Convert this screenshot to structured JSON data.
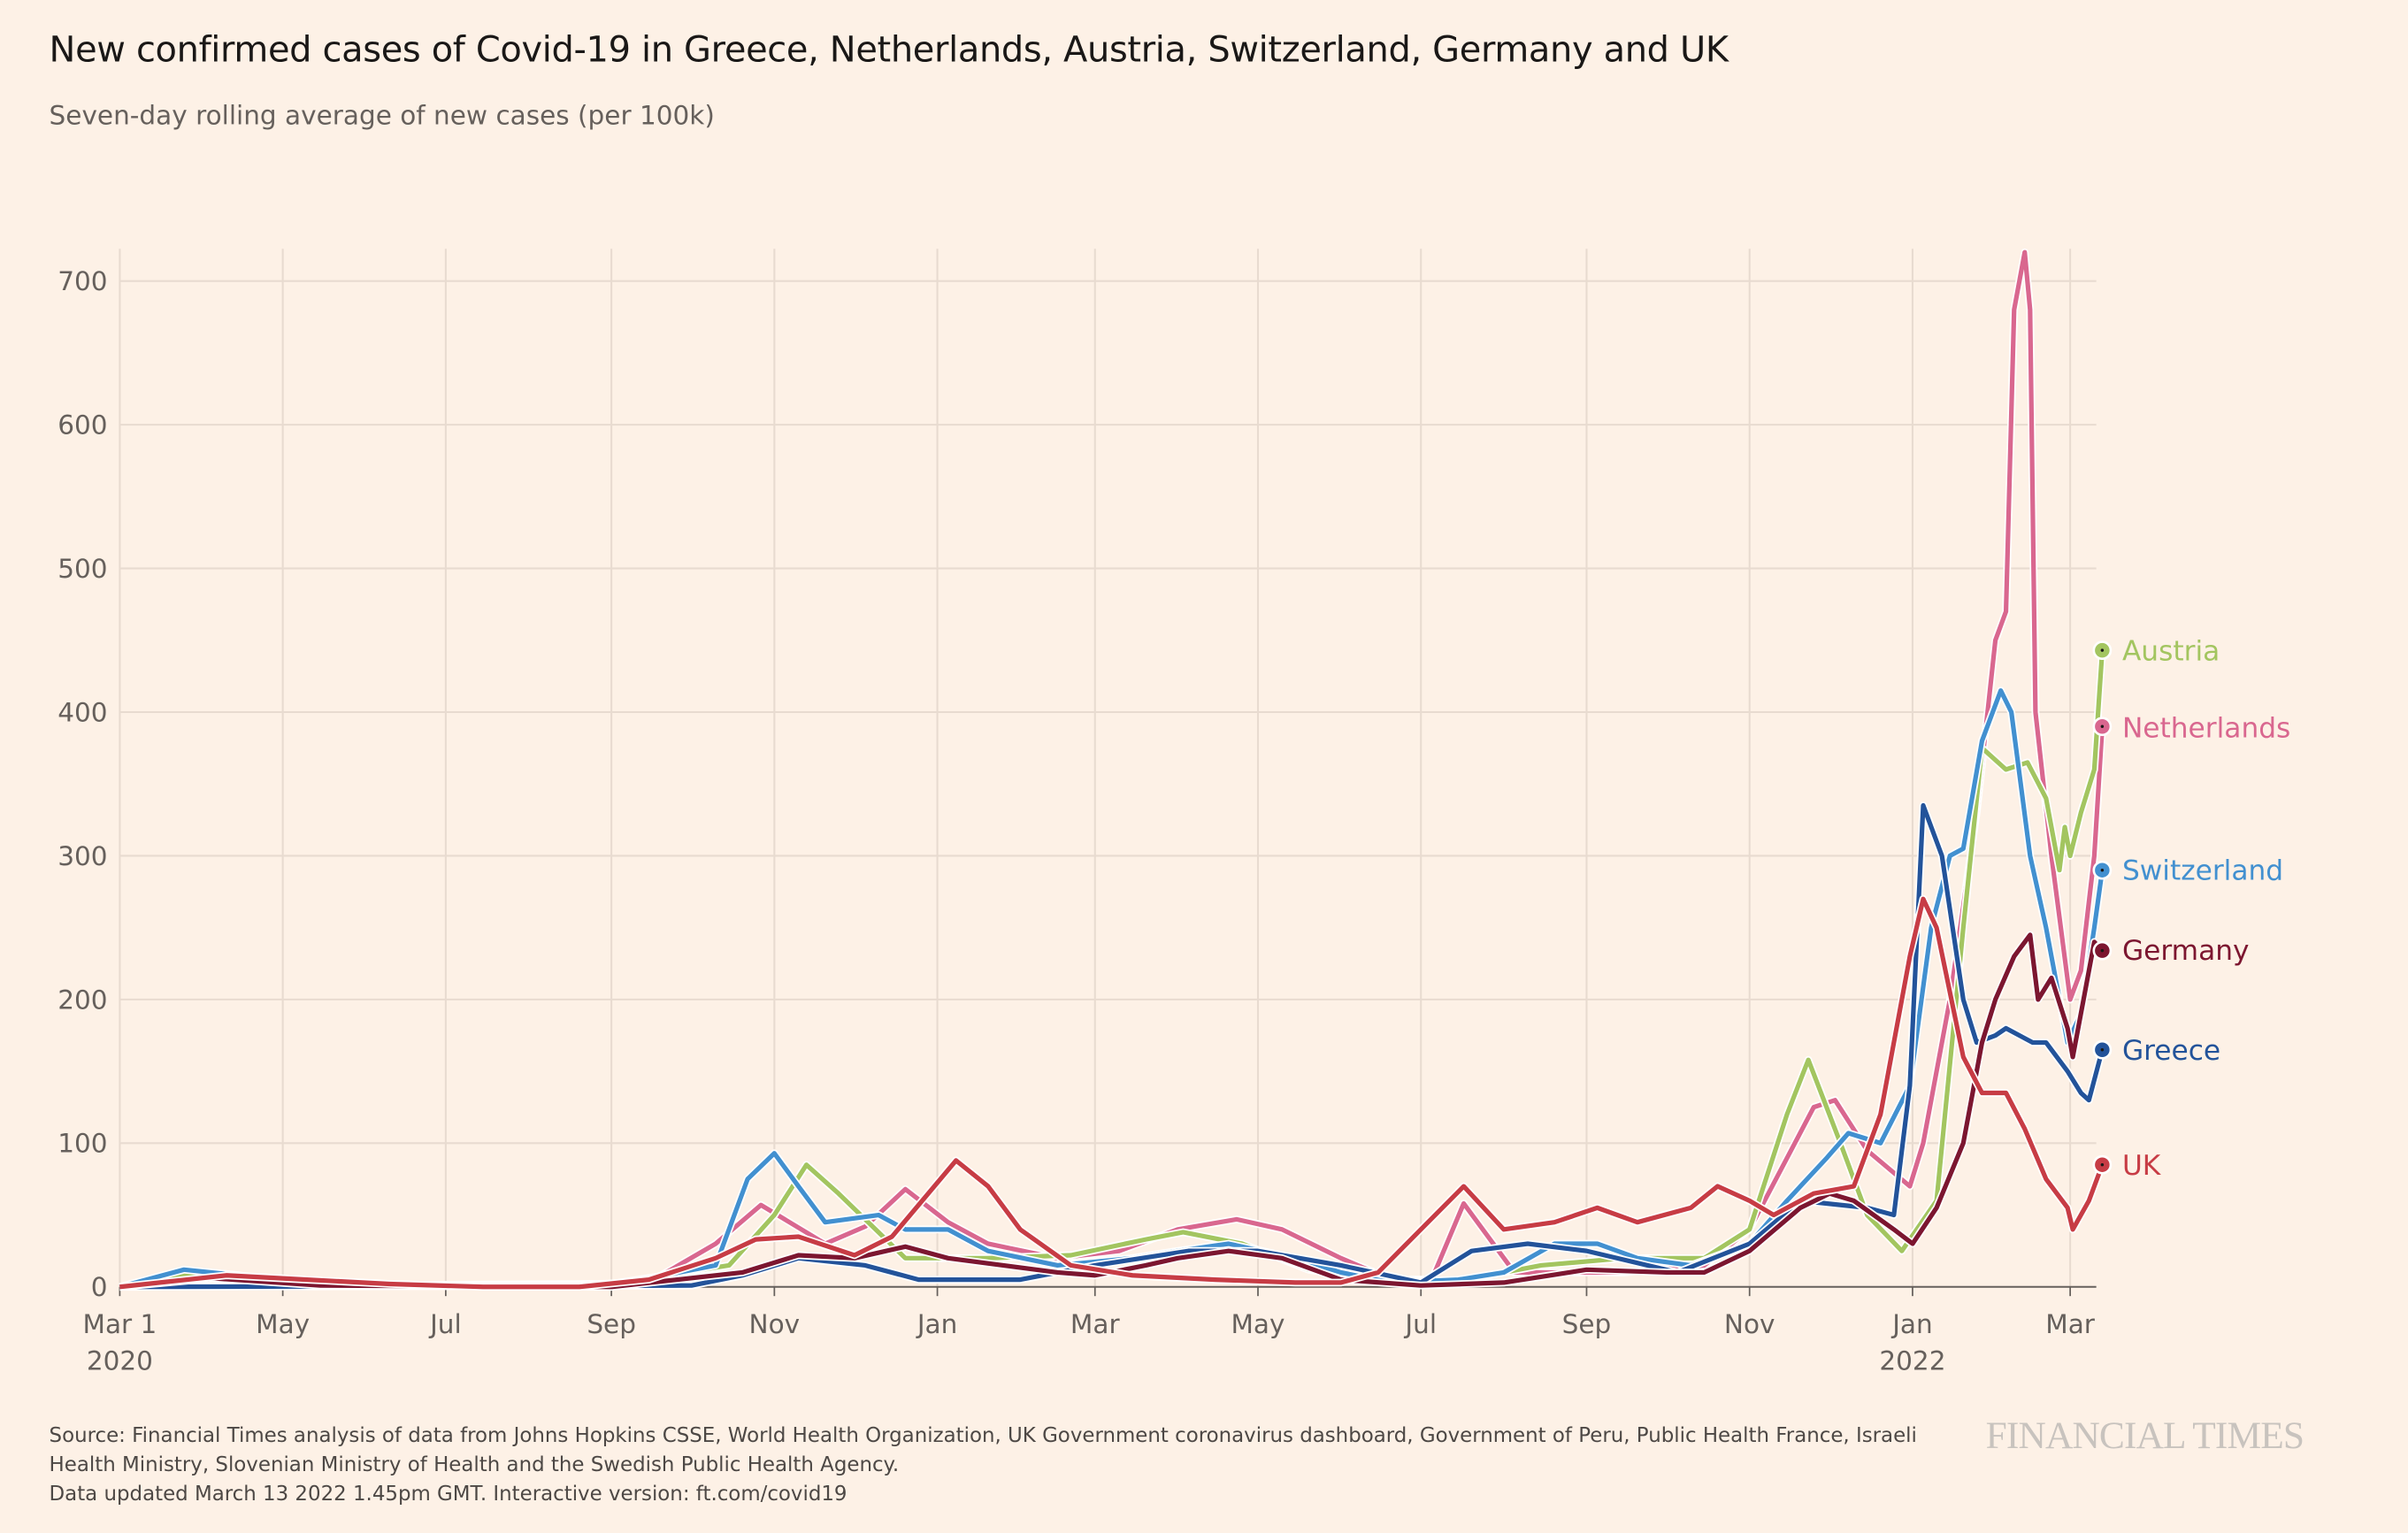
{
  "title": "New confirmed cases of Covid-19 in Greece, Netherlands, Austria, Switzerland, Germany and UK",
  "subtitle": "Seven-day rolling average of new cases (per 100k)",
  "footer": {
    "source": "Source: Financial Times analysis of data from Johns Hopkins CSSE, World Health Organization, UK Government coronavirus dashboard, Government of Peru, Public Health France, Israeli Health Ministry, Slovenian Ministry of Health and the Swedish Public Health Agency.",
    "updated": "Data updated March 13 2022 1.45pm GMT. Interactive version: ft.com/covid19",
    "logo": "FINANCIAL TIMES"
  },
  "chart_data": {
    "type": "line",
    "title": "New confirmed cases of Covid-19 in Greece, Netherlands, Austria, Switzerland, Germany and UK",
    "ylabel": "Seven-day rolling average of new cases (per 100k)",
    "xlim": [
      "2020-03-01",
      "2022-03-13"
    ],
    "ylim": [
      0,
      720
    ],
    "grid": true,
    "yticks": [
      0,
      100,
      200,
      300,
      400,
      500,
      600,
      700
    ],
    "xticks": [
      {
        "date": "2020-03-01",
        "label": "Mar 1",
        "sub": "2020"
      },
      {
        "date": "2020-05-01",
        "label": "May"
      },
      {
        "date": "2020-07-01",
        "label": "Jul"
      },
      {
        "date": "2020-09-01",
        "label": "Sep"
      },
      {
        "date": "2020-11-01",
        "label": "Nov"
      },
      {
        "date": "2021-01-01",
        "label": "Jan"
      },
      {
        "date": "2021-03-01",
        "label": "Mar"
      },
      {
        "date": "2021-05-01",
        "label": "May"
      },
      {
        "date": "2021-07-01",
        "label": "Jul"
      },
      {
        "date": "2021-09-01",
        "label": "Sep"
      },
      {
        "date": "2021-11-01",
        "label": "Nov"
      },
      {
        "date": "2022-01-01",
        "label": "Jan",
        "sub": "2022"
      },
      {
        "date": "2022-03-01",
        "label": "Mar"
      }
    ],
    "legend": "direct labels at line ends (right)",
    "series": [
      {
        "name": "Netherlands",
        "color": "#d9678f",
        "last": 390,
        "points": [
          [
            "2020-03-01",
            0
          ],
          [
            "2020-04-10",
            8
          ],
          [
            "2020-05-15",
            2
          ],
          [
            "2020-08-01",
            1
          ],
          [
            "2020-09-15",
            3
          ],
          [
            "2020-10-10",
            30
          ],
          [
            "2020-10-27",
            57
          ],
          [
            "2020-11-20",
            30
          ],
          [
            "2020-12-05",
            42
          ],
          [
            "2020-12-20",
            68
          ],
          [
            "2021-01-05",
            45
          ],
          [
            "2021-01-20",
            30
          ],
          [
            "2021-02-15",
            20
          ],
          [
            "2021-03-10",
            25
          ],
          [
            "2021-04-01",
            40
          ],
          [
            "2021-04-23",
            47
          ],
          [
            "2021-05-10",
            40
          ],
          [
            "2021-06-01",
            20
          ],
          [
            "2021-06-20",
            5
          ],
          [
            "2021-07-05",
            5
          ],
          [
            "2021-07-17",
            58
          ],
          [
            "2021-08-05",
            10
          ],
          [
            "2021-09-15",
            10
          ],
          [
            "2021-10-15",
            15
          ],
          [
            "2021-11-01",
            40
          ],
          [
            "2021-11-25",
            125
          ],
          [
            "2021-12-03",
            130
          ],
          [
            "2021-12-15",
            95
          ],
          [
            "2021-12-31",
            70
          ],
          [
            "2022-01-05",
            100
          ],
          [
            "2022-01-15",
            200
          ],
          [
            "2022-01-25",
            330
          ],
          [
            "2022-02-01",
            450
          ],
          [
            "2022-02-05",
            470
          ],
          [
            "2022-02-08",
            680
          ],
          [
            "2022-02-12",
            720
          ],
          [
            "2022-02-14",
            680
          ],
          [
            "2022-02-16",
            400
          ],
          [
            "2022-02-22",
            300
          ],
          [
            "2022-03-01",
            200
          ],
          [
            "2022-03-05",
            220
          ],
          [
            "2022-03-10",
            300
          ],
          [
            "2022-03-13",
            390
          ]
        ]
      },
      {
        "name": "Austria",
        "color": "#a3c560",
        "last": 443,
        "points": [
          [
            "2020-03-01",
            0
          ],
          [
            "2020-03-25",
            8
          ],
          [
            "2020-05-01",
            1
          ],
          [
            "2020-09-01",
            2
          ],
          [
            "2020-10-15",
            15
          ],
          [
            "2020-11-01",
            50
          ],
          [
            "2020-11-13",
            85
          ],
          [
            "2020-11-25",
            65
          ],
          [
            "2020-12-20",
            20
          ],
          [
            "2021-01-20",
            20
          ],
          [
            "2021-02-20",
            22
          ],
          [
            "2021-03-20",
            33
          ],
          [
            "2021-04-03",
            38
          ],
          [
            "2021-04-25",
            30
          ],
          [
            "2021-05-20",
            12
          ],
          [
            "2021-06-15",
            4
          ],
          [
            "2021-07-15",
            4
          ],
          [
            "2021-08-15",
            15
          ],
          [
            "2021-09-15",
            20
          ],
          [
            "2021-10-15",
            20
          ],
          [
            "2021-11-01",
            40
          ],
          [
            "2021-11-15",
            120
          ],
          [
            "2021-11-23",
            158
          ],
          [
            "2021-12-05",
            100
          ],
          [
            "2021-12-15",
            50
          ],
          [
            "2021-12-28",
            25
          ],
          [
            "2022-01-10",
            60
          ],
          [
            "2022-01-20",
            250
          ],
          [
            "2022-01-27",
            375
          ],
          [
            "2022-02-05",
            360
          ],
          [
            "2022-02-13",
            365
          ],
          [
            "2022-02-20",
            340
          ],
          [
            "2022-02-25",
            290
          ],
          [
            "2022-02-27",
            320
          ],
          [
            "2022-03-01",
            300
          ],
          [
            "2022-03-05",
            330
          ],
          [
            "2022-03-10",
            360
          ],
          [
            "2022-03-13",
            443
          ]
        ]
      },
      {
        "name": "Switzerland",
        "color": "#4290d0",
        "last": 290,
        "points": [
          [
            "2020-03-01",
            0
          ],
          [
            "2020-03-25",
            12
          ],
          [
            "2020-04-15",
            8
          ],
          [
            "2020-05-10",
            1
          ],
          [
            "2020-09-01",
            1
          ],
          [
            "2020-10-10",
            15
          ],
          [
            "2020-10-22",
            75
          ],
          [
            "2020-11-01",
            93
          ],
          [
            "2020-11-10",
            70
          ],
          [
            "2020-11-20",
            45
          ],
          [
            "2020-12-10",
            50
          ],
          [
            "2020-12-20",
            40
          ],
          [
            "2021-01-05",
            40
          ],
          [
            "2021-01-20",
            25
          ],
          [
            "2021-02-15",
            15
          ],
          [
            "2021-03-15",
            20
          ],
          [
            "2021-04-01",
            25
          ],
          [
            "2021-04-20",
            30
          ],
          [
            "2021-05-15",
            20
          ],
          [
            "2021-06-01",
            10
          ],
          [
            "2021-06-20",
            3
          ],
          [
            "2021-07-15",
            5
          ],
          [
            "2021-08-01",
            10
          ],
          [
            "2021-08-20",
            30
          ],
          [
            "2021-09-05",
            30
          ],
          [
            "2021-09-20",
            20
          ],
          [
            "2021-10-10",
            15
          ],
          [
            "2021-11-01",
            30
          ],
          [
            "2021-11-15",
            60
          ],
          [
            "2021-11-30",
            90
          ],
          [
            "2021-12-08",
            107
          ],
          [
            "2021-12-20",
            100
          ],
          [
            "2021-12-31",
            140
          ],
          [
            "2022-01-08",
            250
          ],
          [
            "2022-01-15",
            300
          ],
          [
            "2022-01-20",
            305
          ],
          [
            "2022-01-27",
            380
          ],
          [
            "2022-02-03",
            415
          ],
          [
            "2022-02-07",
            400
          ],
          [
            "2022-02-14",
            300
          ],
          [
            "2022-02-20",
            250
          ],
          [
            "2022-02-28",
            170
          ],
          [
            "2022-03-05",
            190
          ],
          [
            "2022-03-10",
            250
          ],
          [
            "2022-03-13",
            290
          ]
        ]
      },
      {
        "name": "Greece",
        "color": "#23539a",
        "last": 165,
        "points": [
          [
            "2020-03-01",
            0
          ],
          [
            "2020-10-01",
            1
          ],
          [
            "2020-10-20",
            8
          ],
          [
            "2020-11-10",
            20
          ],
          [
            "2020-12-05",
            15
          ],
          [
            "2020-12-25",
            5
          ],
          [
            "2021-02-01",
            5
          ],
          [
            "2021-03-01",
            15
          ],
          [
            "2021-04-05",
            25
          ],
          [
            "2021-05-01",
            25
          ],
          [
            "2021-06-01",
            15
          ],
          [
            "2021-07-01",
            3
          ],
          [
            "2021-07-20",
            25
          ],
          [
            "2021-08-10",
            30
          ],
          [
            "2021-09-01",
            25
          ],
          [
            "2021-10-05",
            10
          ],
          [
            "2021-11-01",
            30
          ],
          [
            "2021-11-20",
            60
          ],
          [
            "2021-12-15",
            55
          ],
          [
            "2021-12-25",
            50
          ],
          [
            "2021-12-31",
            140
          ],
          [
            "2022-01-05",
            335
          ],
          [
            "2022-01-10",
            310
          ],
          [
            "2022-01-12",
            300
          ],
          [
            "2022-01-20",
            200
          ],
          [
            "2022-01-25",
            170
          ],
          [
            "2022-02-01",
            175
          ],
          [
            "2022-02-05",
            180
          ],
          [
            "2022-02-15",
            170
          ],
          [
            "2022-02-20",
            170
          ],
          [
            "2022-02-28",
            150
          ],
          [
            "2022-03-05",
            135
          ],
          [
            "2022-03-08",
            130
          ],
          [
            "2022-03-13",
            165
          ]
        ]
      },
      {
        "name": "Germany",
        "color": "#7c1630",
        "last": 234,
        "points": [
          [
            "2020-03-01",
            0
          ],
          [
            "2020-04-05",
            6
          ],
          [
            "2020-05-15",
            1
          ],
          [
            "2020-09-01",
            0
          ],
          [
            "2020-10-20",
            10
          ],
          [
            "2020-11-10",
            22
          ],
          [
            "2020-12-01",
            20
          ],
          [
            "2020-12-20",
            28
          ],
          [
            "2021-01-05",
            20
          ],
          [
            "2021-02-15",
            10
          ],
          [
            "2021-03-01",
            8
          ],
          [
            "2021-03-20",
            15
          ],
          [
            "2021-04-01",
            20
          ],
          [
            "2021-04-20",
            25
          ],
          [
            "2021-05-10",
            20
          ],
          [
            "2021-06-01",
            5
          ],
          [
            "2021-07-01",
            1
          ],
          [
            "2021-08-01",
            3
          ],
          [
            "2021-09-01",
            12
          ],
          [
            "2021-10-01",
            10
          ],
          [
            "2021-10-15",
            10
          ],
          [
            "2021-11-01",
            25
          ],
          [
            "2021-11-20",
            55
          ],
          [
            "2021-12-01",
            65
          ],
          [
            "2021-12-10",
            60
          ],
          [
            "2021-12-25",
            40
          ],
          [
            "2022-01-01",
            30
          ],
          [
            "2022-01-10",
            55
          ],
          [
            "2022-01-20",
            100
          ],
          [
            "2022-01-27",
            170
          ],
          [
            "2022-02-01",
            200
          ],
          [
            "2022-02-08",
            230
          ],
          [
            "2022-02-14",
            245
          ],
          [
            "2022-02-17",
            200
          ],
          [
            "2022-02-22",
            215
          ],
          [
            "2022-02-28",
            180
          ],
          [
            "2022-03-02",
            160
          ],
          [
            "2022-03-06",
            200
          ],
          [
            "2022-03-10",
            240
          ],
          [
            "2022-03-13",
            234
          ]
        ]
      },
      {
        "name": "UK",
        "color": "#c73c45",
        "last": 85,
        "points": [
          [
            "2020-03-01",
            0
          ],
          [
            "2020-04-10",
            8
          ],
          [
            "2020-05-10",
            5
          ],
          [
            "2020-06-10",
            2
          ],
          [
            "2020-07-15",
            0
          ],
          [
            "2020-08-20",
            0
          ],
          [
            "2020-09-15",
            5
          ],
          [
            "2020-10-10",
            20
          ],
          [
            "2020-10-25",
            33
          ],
          [
            "2020-11-10",
            35
          ],
          [
            "2020-12-01",
            22
          ],
          [
            "2020-12-15",
            35
          ],
          [
            "2021-01-08",
            88
          ],
          [
            "2021-01-20",
            70
          ],
          [
            "2021-02-01",
            40
          ],
          [
            "2021-02-20",
            15
          ],
          [
            "2021-03-15",
            8
          ],
          [
            "2021-04-15",
            5
          ],
          [
            "2021-05-15",
            3
          ],
          [
            "2021-06-01",
            3
          ],
          [
            "2021-06-15",
            10
          ],
          [
            "2021-07-01",
            40
          ],
          [
            "2021-07-17",
            70
          ],
          [
            "2021-08-01",
            40
          ],
          [
            "2021-08-20",
            45
          ],
          [
            "2021-09-05",
            55
          ],
          [
            "2021-09-20",
            45
          ],
          [
            "2021-10-10",
            55
          ],
          [
            "2021-10-20",
            70
          ],
          [
            "2021-11-01",
            60
          ],
          [
            "2021-11-10",
            50
          ],
          [
            "2021-11-25",
            65
          ],
          [
            "2021-12-10",
            70
          ],
          [
            "2021-12-20",
            120
          ],
          [
            "2021-12-31",
            230
          ],
          [
            "2022-01-05",
            270
          ],
          [
            "2022-01-10",
            250
          ],
          [
            "2022-01-20",
            160
          ],
          [
            "2022-01-27",
            135
          ],
          [
            "2022-02-05",
            135
          ],
          [
            "2022-02-12",
            110
          ],
          [
            "2022-02-20",
            75
          ],
          [
            "2022-02-28",
            55
          ],
          [
            "2022-03-02",
            40
          ],
          [
            "2022-03-08",
            60
          ],
          [
            "2022-03-13",
            85
          ]
        ]
      }
    ]
  }
}
